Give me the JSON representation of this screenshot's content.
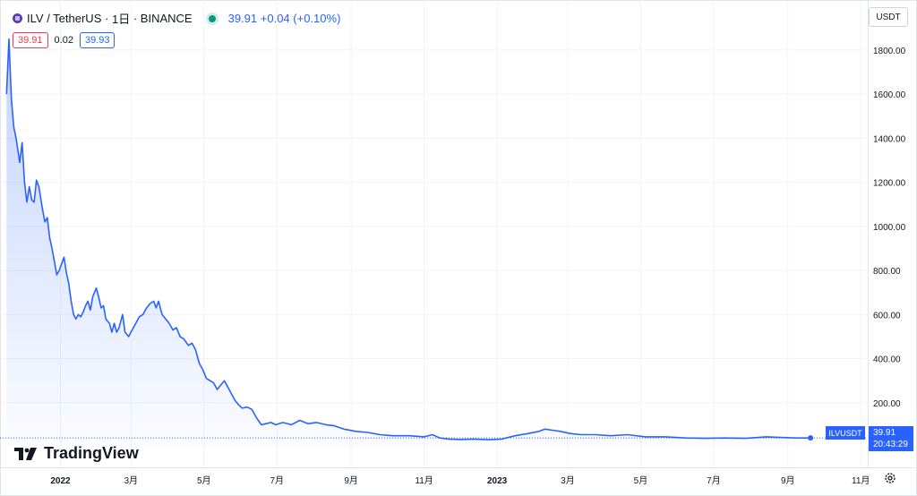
{
  "header": {
    "symbol": "ILV",
    "pair": "/ TetherUS",
    "interval": "1日",
    "exchange": "BINANCE",
    "sep": "·",
    "last_price": "39.91",
    "change": "+0.04",
    "change_pct": "(+0.10%)"
  },
  "quotes": {
    "bid": "39.91",
    "spread": "0.02",
    "ask": "39.93"
  },
  "currency_button": "USDT",
  "logo_text": "TradingView",
  "price_tag": {
    "symbol": "ILVUSDT",
    "price": "39.91",
    "countdown": "20:43:29"
  },
  "colors": {
    "line": "#2962ff",
    "bid": "#f23645",
    "ask": "#2962ff",
    "live": "#089981"
  },
  "icons": {
    "coin": "ilv-coin-icon",
    "settings": "settings-icon",
    "logo": "tradingview-logo-icon"
  },
  "chart_data": {
    "type": "area",
    "ylim": [
      0,
      1950
    ],
    "y_ticks": [
      200,
      400,
      600,
      800,
      1000,
      1200,
      1400,
      1600,
      1800
    ],
    "y_tick_labels": [
      "200.00",
      "400.00",
      "600.00",
      "800.00",
      "1000.00",
      "1200.00",
      "1400.00",
      "1600.00",
      "1800.00"
    ],
    "x_ticks": [
      {
        "date": "2022-01-01",
        "label": "2022",
        "bold": true
      },
      {
        "date": "2022-03-01",
        "label": "3月"
      },
      {
        "date": "2022-05-01",
        "label": "5月"
      },
      {
        "date": "2022-07-01",
        "label": "7月"
      },
      {
        "date": "2022-09-01",
        "label": "9月"
      },
      {
        "date": "2022-11-01",
        "label": "11月"
      },
      {
        "date": "2023-01-01",
        "label": "2023",
        "bold": true
      },
      {
        "date": "2023-03-01",
        "label": "3月"
      },
      {
        "date": "2023-05-01",
        "label": "5月"
      },
      {
        "date": "2023-07-01",
        "label": "7月"
      },
      {
        "date": "2023-09-01",
        "label": "9月"
      },
      {
        "date": "2023-11-01",
        "label": "11月"
      }
    ],
    "xlim": [
      "2021-11-16",
      "2023-11-30"
    ],
    "series": [
      {
        "points": [
          [
            "2021-11-17",
            1600
          ],
          [
            "2021-11-19",
            1850
          ],
          [
            "2021-11-21",
            1580
          ],
          [
            "2021-11-23",
            1450
          ],
          [
            "2021-11-25",
            1400
          ],
          [
            "2021-11-28",
            1290
          ],
          [
            "2021-11-30",
            1380
          ],
          [
            "2021-12-02",
            1200
          ],
          [
            "2021-12-04",
            1110
          ],
          [
            "2021-12-06",
            1180
          ],
          [
            "2021-12-08",
            1120
          ],
          [
            "2021-12-10",
            1110
          ],
          [
            "2021-12-12",
            1210
          ],
          [
            "2021-12-14",
            1180
          ],
          [
            "2021-12-17",
            1080
          ],
          [
            "2021-12-19",
            1020
          ],
          [
            "2021-12-21",
            1040
          ],
          [
            "2021-12-23",
            950
          ],
          [
            "2021-12-25",
            900
          ],
          [
            "2021-12-27",
            840
          ],
          [
            "2021-12-29",
            780
          ],
          [
            "2021-12-31",
            800
          ],
          [
            "2022-01-02",
            830
          ],
          [
            "2022-01-04",
            860
          ],
          [
            "2022-01-06",
            790
          ],
          [
            "2022-01-08",
            740
          ],
          [
            "2022-01-10",
            660
          ],
          [
            "2022-01-12",
            600
          ],
          [
            "2022-01-14",
            580
          ],
          [
            "2022-01-16",
            600
          ],
          [
            "2022-01-18",
            590
          ],
          [
            "2022-01-20",
            610
          ],
          [
            "2022-01-22",
            640
          ],
          [
            "2022-01-24",
            660
          ],
          [
            "2022-01-26",
            620
          ],
          [
            "2022-01-28",
            680
          ],
          [
            "2022-01-31",
            720
          ],
          [
            "2022-02-02",
            680
          ],
          [
            "2022-02-04",
            630
          ],
          [
            "2022-02-06",
            640
          ],
          [
            "2022-02-08",
            580
          ],
          [
            "2022-02-11",
            560
          ],
          [
            "2022-02-13",
            520
          ],
          [
            "2022-02-15",
            560
          ],
          [
            "2022-02-17",
            520
          ],
          [
            "2022-02-19",
            540
          ],
          [
            "2022-02-22",
            600
          ],
          [
            "2022-02-24",
            520
          ],
          [
            "2022-02-27",
            500
          ],
          [
            "2022-03-02",
            530
          ],
          [
            "2022-03-05",
            560
          ],
          [
            "2022-03-08",
            590
          ],
          [
            "2022-03-11",
            600
          ],
          [
            "2022-03-14",
            630
          ],
          [
            "2022-03-17",
            650
          ],
          [
            "2022-03-20",
            660
          ],
          [
            "2022-03-22",
            630
          ],
          [
            "2022-03-24",
            660
          ],
          [
            "2022-03-27",
            600
          ],
          [
            "2022-03-30",
            580
          ],
          [
            "2022-04-02",
            560
          ],
          [
            "2022-04-05",
            530
          ],
          [
            "2022-04-08",
            540
          ],
          [
            "2022-04-11",
            500
          ],
          [
            "2022-04-14",
            490
          ],
          [
            "2022-04-18",
            460
          ],
          [
            "2022-04-21",
            470
          ],
          [
            "2022-04-24",
            440
          ],
          [
            "2022-04-27",
            380
          ],
          [
            "2022-04-30",
            350
          ],
          [
            "2022-05-03",
            310
          ],
          [
            "2022-05-06",
            300
          ],
          [
            "2022-05-09",
            290
          ],
          [
            "2022-05-12",
            260
          ],
          [
            "2022-05-15",
            280
          ],
          [
            "2022-05-18",
            300
          ],
          [
            "2022-05-21",
            270
          ],
          [
            "2022-05-24",
            240
          ],
          [
            "2022-05-27",
            210
          ],
          [
            "2022-05-30",
            190
          ],
          [
            "2022-06-02",
            175
          ],
          [
            "2022-06-06",
            180
          ],
          [
            "2022-06-10",
            170
          ],
          [
            "2022-06-14",
            130
          ],
          [
            "2022-06-18",
            100
          ],
          [
            "2022-06-22",
            105
          ],
          [
            "2022-06-26",
            110
          ],
          [
            "2022-06-30",
            100
          ],
          [
            "2022-07-06",
            110
          ],
          [
            "2022-07-13",
            100
          ],
          [
            "2022-07-20",
            120
          ],
          [
            "2022-07-27",
            105
          ],
          [
            "2022-08-03",
            110
          ],
          [
            "2022-08-11",
            100
          ],
          [
            "2022-08-18",
            95
          ],
          [
            "2022-08-26",
            80
          ],
          [
            "2022-09-05",
            70
          ],
          [
            "2022-09-15",
            65
          ],
          [
            "2022-09-25",
            55
          ],
          [
            "2022-10-06",
            50
          ],
          [
            "2022-10-20",
            50
          ],
          [
            "2022-11-01",
            45
          ],
          [
            "2022-11-08",
            55
          ],
          [
            "2022-11-14",
            40
          ],
          [
            "2022-11-22",
            35
          ],
          [
            "2022-12-01",
            33
          ],
          [
            "2022-12-12",
            35
          ],
          [
            "2022-12-25",
            32
          ],
          [
            "2023-01-05",
            35
          ],
          [
            "2023-01-16",
            50
          ],
          [
            "2023-01-27",
            60
          ],
          [
            "2023-02-05",
            70
          ],
          [
            "2023-02-10",
            80
          ],
          [
            "2023-02-16",
            75
          ],
          [
            "2023-02-23",
            70
          ],
          [
            "2023-03-03",
            60
          ],
          [
            "2023-03-12",
            55
          ],
          [
            "2023-03-24",
            55
          ],
          [
            "2023-04-06",
            50
          ],
          [
            "2023-04-20",
            55
          ],
          [
            "2023-05-05",
            45
          ],
          [
            "2023-05-22",
            45
          ],
          [
            "2023-06-08",
            40
          ],
          [
            "2023-06-24",
            38
          ],
          [
            "2023-07-10",
            40
          ],
          [
            "2023-07-28",
            38
          ],
          [
            "2023-08-14",
            45
          ],
          [
            "2023-08-28",
            42
          ],
          [
            "2023-09-08",
            40
          ],
          [
            "2023-09-20",
            39.91
          ]
        ]
      }
    ]
  }
}
